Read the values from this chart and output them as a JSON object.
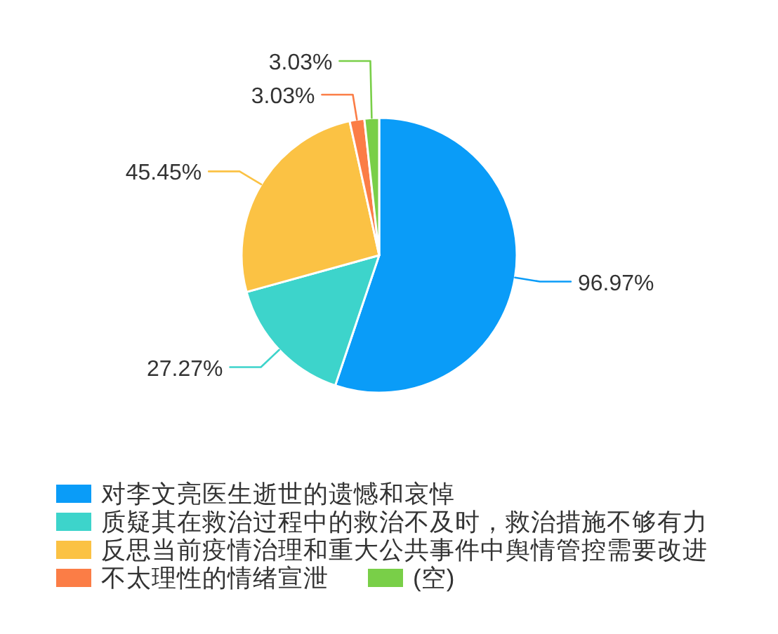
{
  "chart_data": {
    "type": "pie",
    "categories": [
      "对李文亮医生逝世的遗憾和哀悼",
      "质疑其在救治过程中的救治不及时，救治措施不够有力",
      "反思当前疫情治理和重大公共事件中舆情管控需要改进",
      "不太理性的情绪宣泄",
      "(空)"
    ],
    "values": [
      96.97,
      27.27,
      45.45,
      3.03,
      3.03
    ],
    "colors": [
      "#0a9cf8",
      "#3dd4cb",
      "#fbc244",
      "#fb7d46",
      "#79cf48"
    ],
    "value_labels": [
      "96.97%",
      "27.27%",
      "45.45%",
      "3.03%",
      "3.03%"
    ],
    "legend": "bottom"
  }
}
